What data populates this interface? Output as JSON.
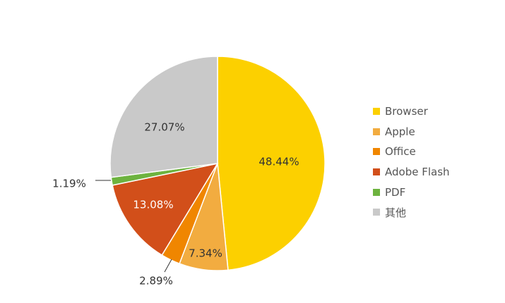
{
  "chart_data": {
    "type": "pie",
    "title": "",
    "legend_position": "right",
    "start_angle_deg": 90,
    "direction": "clockwise",
    "slices": [
      {
        "label": "Browser",
        "value": 48.44,
        "value_label": "48.44%",
        "color": "#FCD000",
        "label_color": "#333333",
        "label_placement": "inside"
      },
      {
        "label": "Apple",
        "value": 7.34,
        "value_label": "7.34%",
        "color": "#F2AC40",
        "label_color": "#333333",
        "label_placement": "inside"
      },
      {
        "label": "Office",
        "value": 2.89,
        "value_label": "2.89%",
        "color": "#F08600",
        "label_color": "#333333",
        "label_placement": "outside"
      },
      {
        "label": "Adobe Flash",
        "value": 13.08,
        "value_label": "13.08%",
        "color": "#D24F1A",
        "label_color": "#ffffff",
        "label_placement": "inside"
      },
      {
        "label": "PDF",
        "value": 1.19,
        "value_label": "1.19%",
        "color": "#6DB33F",
        "label_color": "#333333",
        "label_placement": "outside"
      },
      {
        "label": "其他",
        "value": 27.07,
        "value_label": "27.07%",
        "color": "#C9C9C9",
        "label_color": "#333333",
        "label_placement": "inside"
      }
    ]
  }
}
